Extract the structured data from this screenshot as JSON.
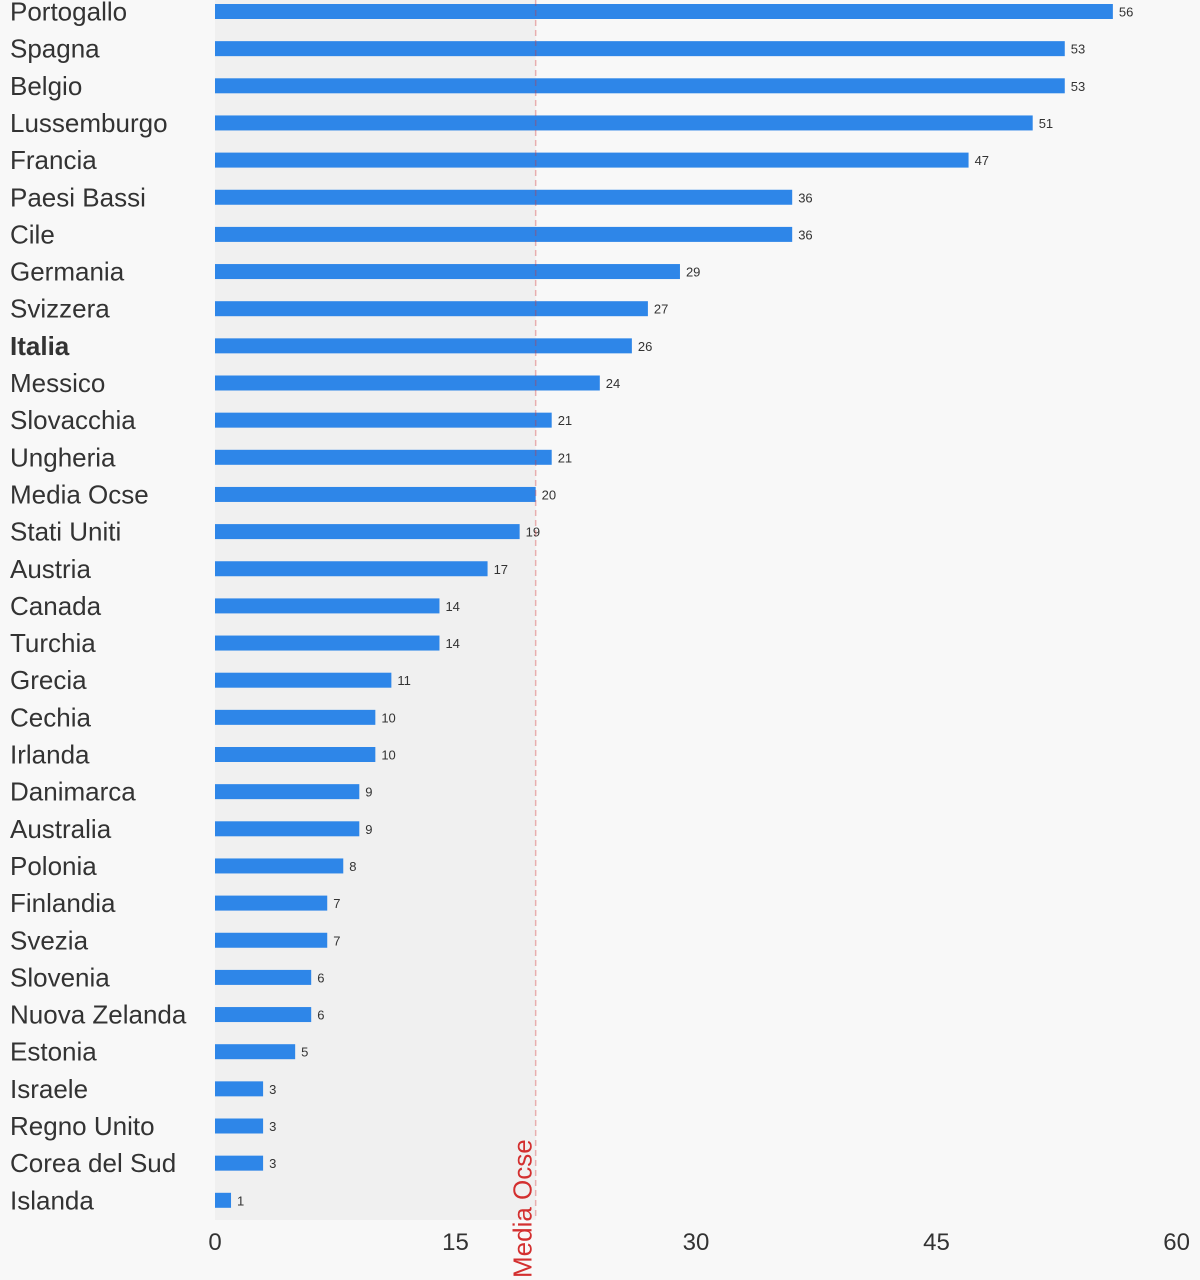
{
  "chart_data": {
    "type": "bar",
    "orientation": "horizontal",
    "categories": [
      "Portogallo",
      "Spagna",
      "Belgio",
      "Lussemburgo",
      "Francia",
      "Paesi Bassi",
      "Cile",
      "Germania",
      "Svizzera",
      "Italia",
      "Messico",
      "Slovacchia",
      "Ungheria",
      "Media Ocse",
      "Stati Uniti",
      "Austria",
      "Canada",
      "Turchia",
      "Grecia",
      "Cechia",
      "Irlanda",
      "Danimarca",
      "Australia",
      "Polonia",
      "Finlandia",
      "Svezia",
      "Slovenia",
      "Nuova Zelanda",
      "Estonia",
      "Israele",
      "Regno Unito",
      "Corea del Sud",
      "Islanda"
    ],
    "values": [
      56,
      53,
      53,
      51,
      47,
      36,
      36,
      29,
      27,
      26,
      24,
      21,
      21,
      20,
      19,
      17,
      14,
      14,
      11,
      10,
      10,
      9,
      9,
      8,
      7,
      7,
      6,
      6,
      5,
      3,
      3,
      3,
      1
    ],
    "highlight_category": "Italia",
    "xlim": [
      0,
      60
    ],
    "xticks": [
      "0",
      "15",
      "30",
      "45",
      "60"
    ],
    "reference_line": {
      "label": "Media Ocse",
      "value": 20,
      "color": "#d32f2f"
    },
    "shaded_region": [
      0,
      20
    ],
    "colors": {
      "bar": "#2e86e8",
      "shade": "#f0f0f0",
      "background": "#f8f8f8",
      "text": "#333333"
    },
    "title": "",
    "xlabel": "",
    "ylabel": "",
    "grid": false,
    "legend": "none"
  }
}
